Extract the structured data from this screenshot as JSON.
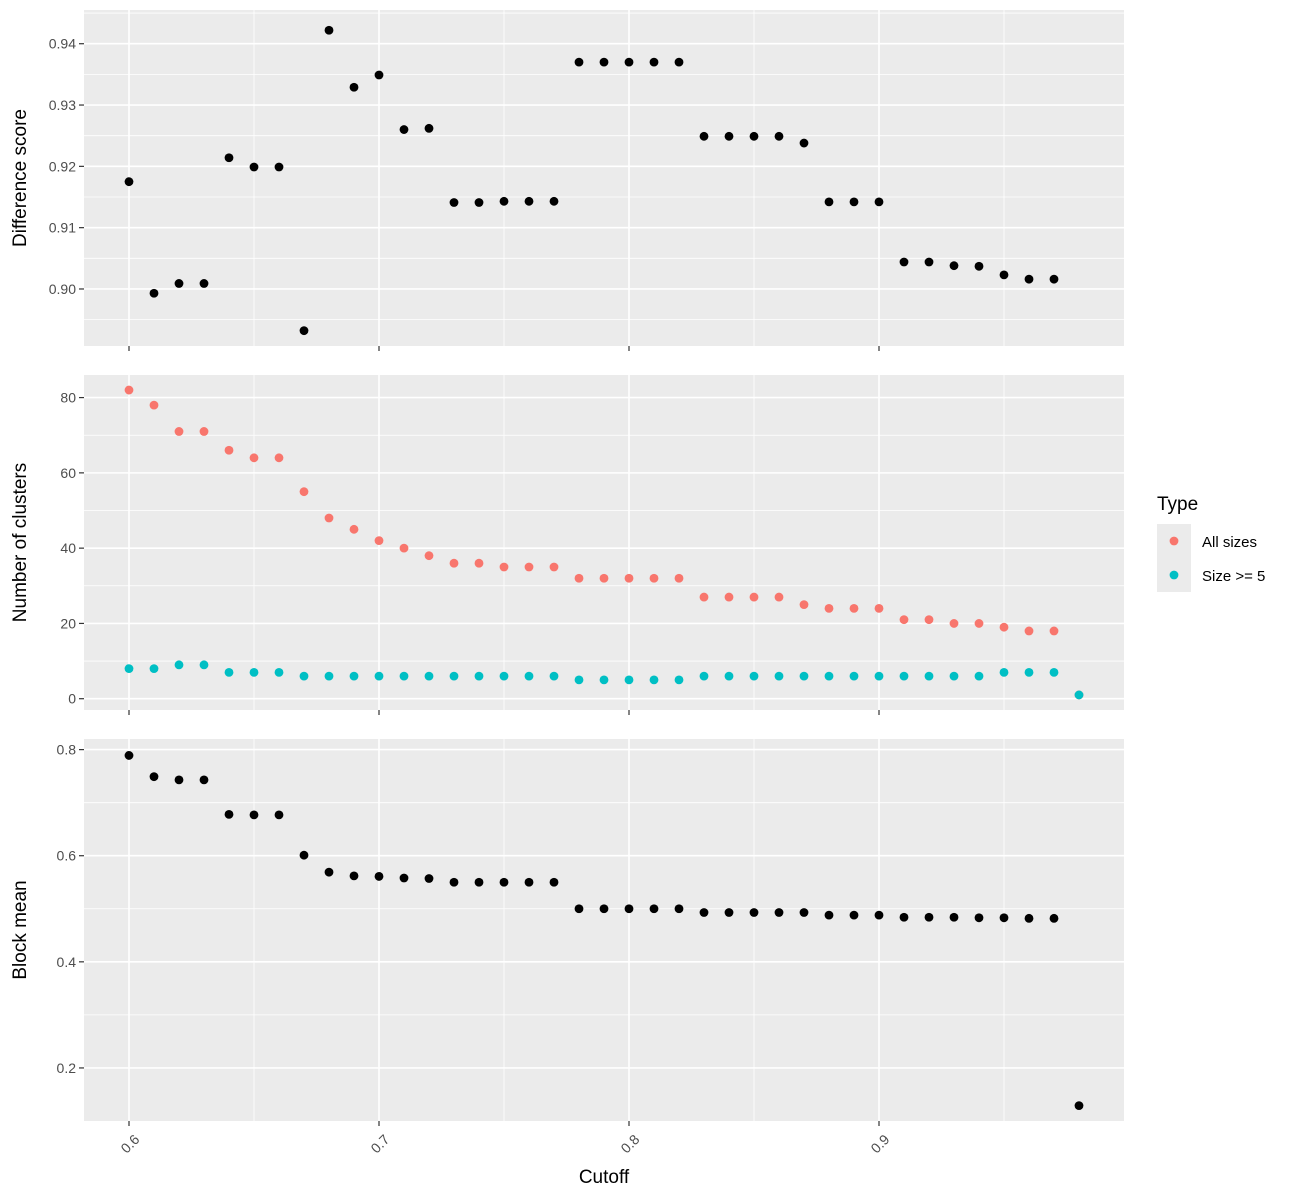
{
  "chart_data": [
    {
      "type": "scatter",
      "panel": "top",
      "title": "",
      "xlabel": "Cutoff",
      "ylabel": "Difference score",
      "xlim": [
        0.582,
        0.998
      ],
      "ylim": [
        0.8907,
        0.9455
      ],
      "xticks": [
        0.6,
        0.7,
        0.8,
        0.9
      ],
      "xtick_labels": [
        "0.6",
        "0.7",
        "0.8",
        "0.9"
      ],
      "yticks": [
        0.9,
        0.91,
        0.92,
        0.93,
        0.94
      ],
      "ytick_labels": [
        "0.90",
        "0.91",
        "0.92",
        "0.93",
        "0.94"
      ],
      "grid": true,
      "series": [
        {
          "color": "#000000",
          "x": [
            0.6,
            0.61,
            0.62,
            0.63,
            0.64,
            0.65,
            0.66,
            0.67,
            0.68,
            0.69,
            0.7,
            0.71,
            0.72,
            0.73,
            0.74,
            0.75,
            0.76,
            0.77,
            0.78,
            0.79,
            0.8,
            0.81,
            0.82,
            0.83,
            0.84,
            0.85,
            0.86,
            0.87,
            0.88,
            0.89,
            0.9,
            0.91,
            0.92,
            0.93,
            0.94,
            0.95,
            0.96,
            0.97
          ],
          "y": [
            0.9175,
            0.8993,
            0.9009,
            0.9009,
            0.9214,
            0.9199,
            0.9199,
            0.8932,
            0.9422,
            0.9329,
            0.9349,
            0.926,
            0.9262,
            0.9141,
            0.9141,
            0.9143,
            0.9143,
            0.9143,
            0.937,
            0.937,
            0.937,
            0.937,
            0.937,
            0.9249,
            0.9249,
            0.9249,
            0.9249,
            0.9238,
            0.9142,
            0.9142,
            0.9142,
            0.9044,
            0.9044,
            0.9038,
            0.9037,
            0.9023,
            0.9016,
            0.9016
          ]
        }
      ]
    },
    {
      "type": "scatter",
      "panel": "middle",
      "title": "",
      "xlabel": "Cutoff",
      "ylabel": "Number of clusters",
      "xlim": [
        0.582,
        0.998
      ],
      "ylim": [
        -3,
        86
      ],
      "xticks": [
        0.6,
        0.7,
        0.8,
        0.9
      ],
      "xtick_labels": [
        "0.6",
        "0.7",
        "0.8",
        "0.9"
      ],
      "yticks": [
        0,
        20,
        40,
        60,
        80
      ],
      "ytick_labels": [
        "0",
        "20",
        "40",
        "60",
        "80"
      ],
      "grid": true,
      "legend": {
        "title": "Type",
        "position": "right",
        "entries": [
          "All sizes",
          "Size >= 5"
        ],
        "colors": [
          "#F8766D",
          "#00BFC4"
        ]
      },
      "series": [
        {
          "name": "All sizes",
          "color": "#F8766D",
          "x": [
            0.6,
            0.61,
            0.62,
            0.63,
            0.64,
            0.65,
            0.66,
            0.67,
            0.68,
            0.69,
            0.7,
            0.71,
            0.72,
            0.73,
            0.74,
            0.75,
            0.76,
            0.77,
            0.78,
            0.79,
            0.8,
            0.81,
            0.82,
            0.83,
            0.84,
            0.85,
            0.86,
            0.87,
            0.88,
            0.89,
            0.9,
            0.91,
            0.92,
            0.93,
            0.94,
            0.95,
            0.96,
            0.97,
            0.98
          ],
          "y": [
            82,
            78,
            71,
            71,
            66,
            64,
            64,
            55,
            48,
            45,
            42,
            40,
            38,
            36,
            36,
            35,
            35,
            35,
            32,
            32,
            32,
            32,
            32,
            27,
            27,
            27,
            27,
            25,
            24,
            24,
            24,
            21,
            21,
            20,
            20,
            19,
            18,
            18,
            1
          ]
        },
        {
          "name": "Size >= 5",
          "color": "#00BFC4",
          "x": [
            0.6,
            0.61,
            0.62,
            0.63,
            0.64,
            0.65,
            0.66,
            0.67,
            0.68,
            0.69,
            0.7,
            0.71,
            0.72,
            0.73,
            0.74,
            0.75,
            0.76,
            0.77,
            0.78,
            0.79,
            0.8,
            0.81,
            0.82,
            0.83,
            0.84,
            0.85,
            0.86,
            0.87,
            0.88,
            0.89,
            0.9,
            0.91,
            0.92,
            0.93,
            0.94,
            0.95,
            0.96,
            0.97,
            0.98
          ],
          "y": [
            8,
            8,
            9,
            9,
            7,
            7,
            7,
            6,
            6,
            6,
            6,
            6,
            6,
            6,
            6,
            6,
            6,
            6,
            5,
            5,
            5,
            5,
            5,
            6,
            6,
            6,
            6,
            6,
            6,
            6,
            6,
            6,
            6,
            6,
            6,
            7,
            7,
            7,
            1
          ]
        }
      ]
    },
    {
      "type": "scatter",
      "panel": "bottom",
      "title": "",
      "xlabel": "Cutoff",
      "ylabel": "Block mean",
      "xlim": [
        0.582,
        0.998
      ],
      "ylim": [
        0.1,
        0.82
      ],
      "xticks": [
        0.6,
        0.7,
        0.8,
        0.9
      ],
      "xtick_labels": [
        "0.6",
        "0.7",
        "0.8",
        "0.9"
      ],
      "yticks": [
        0.2,
        0.4,
        0.6,
        0.8
      ],
      "ytick_labels": [
        "0.2",
        "0.4",
        "0.6",
        "0.8"
      ],
      "grid": true,
      "series": [
        {
          "color": "#000000",
          "x": [
            0.6,
            0.61,
            0.62,
            0.63,
            0.64,
            0.65,
            0.66,
            0.67,
            0.68,
            0.69,
            0.7,
            0.71,
            0.72,
            0.73,
            0.74,
            0.75,
            0.76,
            0.77,
            0.78,
            0.79,
            0.8,
            0.81,
            0.82,
            0.83,
            0.84,
            0.85,
            0.86,
            0.87,
            0.88,
            0.89,
            0.9,
            0.91,
            0.92,
            0.93,
            0.94,
            0.95,
            0.96,
            0.97,
            0.98
          ],
          "y": [
            0.789,
            0.749,
            0.743,
            0.743,
            0.678,
            0.677,
            0.677,
            0.601,
            0.569,
            0.562,
            0.561,
            0.558,
            0.557,
            0.55,
            0.55,
            0.55,
            0.55,
            0.55,
            0.5,
            0.5,
            0.5,
            0.5,
            0.5,
            0.493,
            0.493,
            0.493,
            0.493,
            0.493,
            0.488,
            0.488,
            0.488,
            0.484,
            0.484,
            0.484,
            0.483,
            0.483,
            0.482,
            0.482,
            0.129
          ]
        }
      ]
    }
  ]
}
